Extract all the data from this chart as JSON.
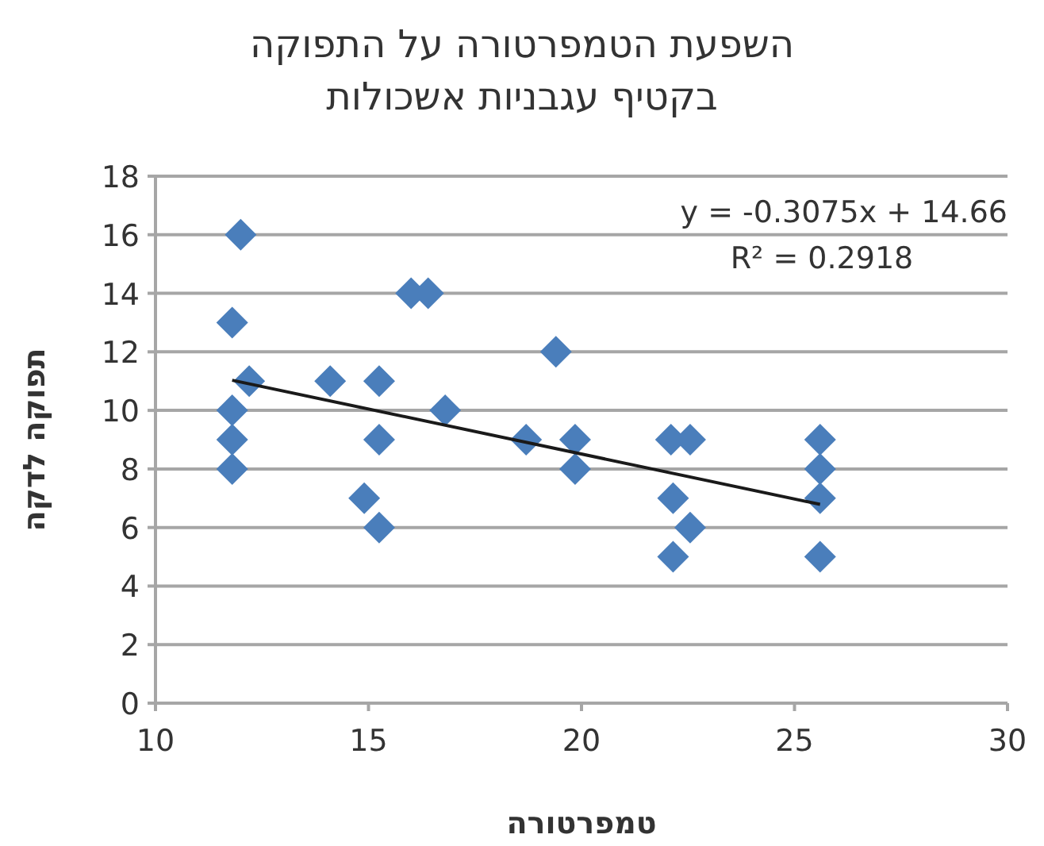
{
  "chart_data": {
    "type": "scatter",
    "title": "השפעת הטמפרטורה על התפוקה\nבקטיף עגבניות אשכולות",
    "xlabel": "טמפרטורה",
    "ylabel": "תפוקה לדקה",
    "xlim": [
      10,
      30
    ],
    "xticks": [
      10,
      15,
      20,
      25,
      30
    ],
    "ylim": [
      0,
      18
    ],
    "yticks": [
      0,
      2,
      4,
      6,
      8,
      10,
      12,
      14,
      16,
      18
    ],
    "grid": "y",
    "series": [
      {
        "marker": "diamond",
        "color": "#4a7ebb",
        "x": [
          12.0,
          11.8,
          12.2,
          11.8,
          11.8,
          11.8,
          14.1,
          15.25,
          15.25,
          14.9,
          15.25,
          16.0,
          16.4,
          16.8,
          18.7,
          19.4,
          19.85,
          19.85,
          22.1,
          22.55,
          22.15,
          22.55,
          22.15,
          25.6,
          25.6,
          25.6,
          25.6
        ],
        "values": [
          16,
          13,
          11,
          10,
          9,
          8,
          11,
          11,
          9,
          7,
          6,
          14,
          14,
          10,
          9,
          12,
          9,
          8,
          9,
          9,
          7,
          6,
          5,
          9,
          8,
          7,
          5
        ]
      },
      {
        "type": "line",
        "marker": "none",
        "color": "#1a1a1a",
        "x": [
          11.8,
          25.6
        ],
        "values": [
          11.03,
          6.79
        ]
      }
    ],
    "annotations": [
      "y = -0.3075x + 14.66",
      "R² = 0.2918"
    ]
  }
}
